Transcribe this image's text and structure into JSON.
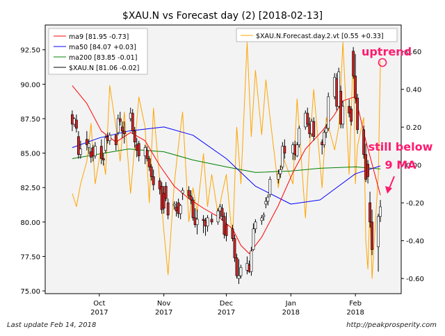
{
  "chart_data": {
    "type": "candlestick",
    "title": "$XAU.N vs Forecast day (2)  [2018-02-13]",
    "left_axis": {
      "ylim": [
        74.8,
        94.3
      ],
      "ticks": [
        "75.00",
        "77.50",
        "80.00",
        "82.50",
        "85.00",
        "87.50",
        "90.00",
        "92.50"
      ]
    },
    "right_axis": {
      "ylim": [
        -0.68,
        0.74
      ],
      "ticks": [
        "-0.60",
        "-0.40",
        "-0.20",
        "0.00",
        "0.20",
        "0.40",
        "0.60"
      ]
    },
    "x_axis": {
      "xlim": [
        "2017-09-05",
        "2018-02-23"
      ],
      "ticks": [
        {
          "date": "2017-10-01",
          "line1": "Oct",
          "line2": "2017"
        },
        {
          "date": "2017-11-01",
          "line1": "Nov",
          "line2": "2017"
        },
        {
          "date": "2017-12-01",
          "line1": "Dec",
          "line2": "2017"
        },
        {
          "date": "2018-01-01",
          "line1": "Jan",
          "line2": "2018"
        },
        {
          "date": "2018-02-01",
          "line1": "Feb",
          "line2": "2018"
        }
      ]
    },
    "legend_left": {
      "placement": "top-left",
      "entries": [
        {
          "label": "ma9 [81.95 -0.73]",
          "color": "#ff0000"
        },
        {
          "label": "ma50 [84.07 +0.03]",
          "color": "#0000ff"
        },
        {
          "label": "ma200 [83.85 -0.01]",
          "color": "#008000"
        },
        {
          "label": "$XAU.N [81.06 -0.02]",
          "color": "#000000"
        }
      ]
    },
    "legend_right": {
      "placement": "top-right",
      "entries": [
        {
          "label": "$XAU.N.Forecast.day.2.vt [0.55 +0.33]",
          "color": "#ffa500"
        }
      ]
    },
    "colors": {
      "up": "#ffffff",
      "down": "#cc2222",
      "ma9": "#ff0000",
      "ma50": "#0000ff",
      "ma200": "#008000",
      "forecast": "#ffa500",
      "annotation": "#ff1a6e",
      "plot_bg": "#f3f3f3"
    },
    "candles": [
      {
        "d": "2017-09-18",
        "o": 87.8,
        "h": 88.1,
        "l": 86.6,
        "c": 87.1
      },
      {
        "d": "2017-09-19",
        "o": 87.1,
        "h": 87.6,
        "l": 86.9,
        "c": 87.5
      },
      {
        "d": "2017-09-20",
        "o": 87.4,
        "h": 87.8,
        "l": 86.5,
        "c": 86.8
      },
      {
        "d": "2017-09-21",
        "o": 86.2,
        "h": 86.6,
        "l": 84.6,
        "c": 84.9
      },
      {
        "d": "2017-09-22",
        "o": 84.9,
        "h": 85.9,
        "l": 84.6,
        "c": 85.3
      },
      {
        "d": "2017-09-25",
        "o": 86.0,
        "h": 86.6,
        "l": 85.2,
        "c": 85.6
      },
      {
        "d": "2017-09-26",
        "o": 85.4,
        "h": 86.0,
        "l": 84.9,
        "c": 85.7
      },
      {
        "d": "2017-09-27",
        "o": 85.1,
        "h": 85.4,
        "l": 84.3,
        "c": 84.7
      },
      {
        "d": "2017-09-28",
        "o": 85.4,
        "h": 85.6,
        "l": 84.4,
        "c": 84.8
      },
      {
        "d": "2017-09-29",
        "o": 84.8,
        "h": 85.8,
        "l": 84.6,
        "c": 85.5
      },
      {
        "d": "2017-10-02",
        "o": 85.5,
        "h": 86.0,
        "l": 84.2,
        "c": 84.6
      },
      {
        "d": "2017-10-03",
        "o": 84.6,
        "h": 85.0,
        "l": 84.1,
        "c": 84.5
      },
      {
        "d": "2017-10-04",
        "o": 85.2,
        "h": 86.3,
        "l": 85.0,
        "c": 86.1
      },
      {
        "d": "2017-10-05",
        "o": 86.2,
        "h": 86.5,
        "l": 85.7,
        "c": 85.9
      },
      {
        "d": "2017-10-06",
        "o": 85.9,
        "h": 86.5,
        "l": 85.6,
        "c": 86.3
      },
      {
        "d": "2017-10-09",
        "o": 86.3,
        "h": 86.4,
        "l": 85.2,
        "c": 85.6
      },
      {
        "d": "2017-10-10",
        "o": 86.5,
        "h": 87.8,
        "l": 86.3,
        "c": 87.5
      },
      {
        "d": "2017-10-11",
        "o": 87.5,
        "h": 88.0,
        "l": 87.0,
        "c": 87.3
      },
      {
        "d": "2017-10-12",
        "o": 86.9,
        "h": 87.3,
        "l": 86.1,
        "c": 86.6
      },
      {
        "d": "2017-10-13",
        "o": 86.6,
        "h": 87.3,
        "l": 85.7,
        "c": 86.4
      },
      {
        "d": "2017-10-16",
        "o": 87.5,
        "h": 88.3,
        "l": 87.3,
        "c": 87.9
      },
      {
        "d": "2017-10-17",
        "o": 87.9,
        "h": 88.2,
        "l": 86.4,
        "c": 86.6
      },
      {
        "d": "2017-10-18",
        "o": 86.6,
        "h": 86.9,
        "l": 85.4,
        "c": 85.8
      },
      {
        "d": "2017-10-19",
        "o": 85.6,
        "h": 86.1,
        "l": 84.7,
        "c": 85.2
      },
      {
        "d": "2017-10-20",
        "o": 85.7,
        "h": 85.9,
        "l": 84.4,
        "c": 84.8
      },
      {
        "d": "2017-10-23",
        "o": 84.8,
        "h": 85.6,
        "l": 84.2,
        "c": 85.4
      },
      {
        "d": "2017-10-24",
        "o": 85.2,
        "h": 85.5,
        "l": 84.4,
        "c": 84.6
      },
      {
        "d": "2017-10-25",
        "o": 84.6,
        "h": 84.8,
        "l": 83.7,
        "c": 84.0
      },
      {
        "d": "2017-10-26",
        "o": 84.0,
        "h": 84.2,
        "l": 83.0,
        "c": 83.3
      },
      {
        "d": "2017-10-27",
        "o": 83.3,
        "h": 83.8,
        "l": 82.3,
        "c": 82.7
      },
      {
        "d": "2017-10-30",
        "o": 83.0,
        "h": 83.2,
        "l": 82.0,
        "c": 82.4
      },
      {
        "d": "2017-10-31",
        "o": 82.6,
        "h": 82.9,
        "l": 80.6,
        "c": 80.9
      },
      {
        "d": "2017-11-01",
        "o": 82.1,
        "h": 82.6,
        "l": 80.6,
        "c": 81.0
      },
      {
        "d": "2017-11-02",
        "o": 82.6,
        "h": 82.9,
        "l": 81.5,
        "c": 81.7
      },
      {
        "d": "2017-11-03",
        "o": 81.4,
        "h": 81.7,
        "l": 80.2,
        "c": 80.5
      },
      {
        "d": "2017-11-06",
        "o": 81.2,
        "h": 81.5,
        "l": 80.9,
        "c": 81.3
      },
      {
        "d": "2017-11-07",
        "o": 81.1,
        "h": 81.5,
        "l": 80.4,
        "c": 80.8
      },
      {
        "d": "2017-11-08",
        "o": 81.4,
        "h": 81.7,
        "l": 80.3,
        "c": 80.6
      },
      {
        "d": "2017-11-09",
        "o": 80.6,
        "h": 81.3,
        "l": 80.2,
        "c": 81.2
      },
      {
        "d": "2017-11-10",
        "o": 82.1,
        "h": 82.5,
        "l": 81.6,
        "c": 82.3
      },
      {
        "d": "2017-11-13",
        "o": 82.3,
        "h": 82.6,
        "l": 81.7,
        "c": 81.9
      },
      {
        "d": "2017-11-14",
        "o": 81.9,
        "h": 82.3,
        "l": 81.3,
        "c": 81.6
      },
      {
        "d": "2017-11-15",
        "o": 81.6,
        "h": 81.8,
        "l": 80.1,
        "c": 80.3
      },
      {
        "d": "2017-11-16",
        "o": 80.3,
        "h": 81.0,
        "l": 79.6,
        "c": 79.8
      },
      {
        "d": "2017-11-17",
        "o": 79.8,
        "h": 80.9,
        "l": 79.1,
        "c": 80.2
      },
      {
        "d": "2017-11-20",
        "o": 80.2,
        "h": 80.5,
        "l": 79.2,
        "c": 80.1
      },
      {
        "d": "2017-11-21",
        "o": 80.1,
        "h": 80.3,
        "l": 79.0,
        "c": 79.7
      },
      {
        "d": "2017-11-22",
        "o": 79.7,
        "h": 80.5,
        "l": 79.3,
        "c": 80.3
      },
      {
        "d": "2017-11-24",
        "o": 80.2,
        "h": 80.6,
        "l": 79.8,
        "c": 80.0
      },
      {
        "d": "2017-11-27",
        "o": 80.0,
        "h": 81.0,
        "l": 79.8,
        "c": 80.8
      },
      {
        "d": "2017-11-28",
        "o": 80.8,
        "h": 81.3,
        "l": 80.3,
        "c": 81.1
      },
      {
        "d": "2017-11-29",
        "o": 81.0,
        "h": 81.3,
        "l": 80.1,
        "c": 80.4
      },
      {
        "d": "2017-11-30",
        "o": 80.4,
        "h": 80.7,
        "l": 78.8,
        "c": 79.1
      },
      {
        "d": "2017-12-01",
        "o": 79.8,
        "h": 80.7,
        "l": 78.6,
        "c": 79.0
      },
      {
        "d": "2017-12-04",
        "o": 79.5,
        "h": 79.8,
        "l": 78.6,
        "c": 78.8
      },
      {
        "d": "2017-12-05",
        "o": 78.8,
        "h": 79.1,
        "l": 77.1,
        "c": 77.4
      },
      {
        "d": "2017-12-06",
        "o": 77.4,
        "h": 77.7,
        "l": 75.9,
        "c": 76.1
      },
      {
        "d": "2017-12-07",
        "o": 75.9,
        "h": 77.3,
        "l": 75.5,
        "c": 76.1
      },
      {
        "d": "2017-12-08",
        "o": 76.1,
        "h": 76.9,
        "l": 75.9,
        "c": 76.7
      },
      {
        "d": "2017-12-11",
        "o": 76.5,
        "h": 77.5,
        "l": 76.2,
        "c": 77.0
      },
      {
        "d": "2017-12-12",
        "o": 76.9,
        "h": 77.2,
        "l": 76.3,
        "c": 76.4
      },
      {
        "d": "2017-12-13",
        "o": 76.4,
        "h": 78.2,
        "l": 76.1,
        "c": 77.9
      },
      {
        "d": "2017-12-14",
        "o": 78.0,
        "h": 79.9,
        "l": 77.9,
        "c": 79.5
      },
      {
        "d": "2017-12-15",
        "o": 79.5,
        "h": 80.2,
        "l": 79.2,
        "c": 80.0
      },
      {
        "d": "2017-12-18",
        "o": 80.1,
        "h": 80.5,
        "l": 79.8,
        "c": 80.3
      },
      {
        "d": "2017-12-19",
        "o": 80.4,
        "h": 80.7,
        "l": 80.1,
        "c": 80.5
      },
      {
        "d": "2017-12-20",
        "o": 81.3,
        "h": 81.8,
        "l": 81.0,
        "c": 81.5
      },
      {
        "d": "2017-12-21",
        "o": 81.5,
        "h": 82.0,
        "l": 81.2,
        "c": 81.8
      },
      {
        "d": "2017-12-22",
        "o": 82.0,
        "h": 83.3,
        "l": 81.8,
        "c": 83.1
      },
      {
        "d": "2017-12-26",
        "o": 83.1,
        "h": 83.8,
        "l": 82.8,
        "c": 83.5
      },
      {
        "d": "2017-12-27",
        "o": 83.5,
        "h": 84.1,
        "l": 83.2,
        "c": 83.8
      },
      {
        "d": "2017-12-28",
        "o": 84.0,
        "h": 85.8,
        "l": 83.8,
        "c": 85.5
      },
      {
        "d": "2017-12-29",
        "o": 85.5,
        "h": 86.0,
        "l": 84.6,
        "c": 85.0
      },
      {
        "d": "2018-01-02",
        "o": 85.0,
        "h": 85.8,
        "l": 84.5,
        "c": 85.6
      },
      {
        "d": "2018-01-03",
        "o": 85.6,
        "h": 85.9,
        "l": 84.5,
        "c": 84.9
      },
      {
        "d": "2018-01-04",
        "o": 84.8,
        "h": 85.8,
        "l": 84.7,
        "c": 85.6
      },
      {
        "d": "2018-01-05",
        "o": 85.6,
        "h": 87.0,
        "l": 85.4,
        "c": 86.8
      },
      {
        "d": "2018-01-08",
        "o": 86.9,
        "h": 88.1,
        "l": 86.7,
        "c": 87.9
      },
      {
        "d": "2018-01-09",
        "o": 87.9,
        "h": 88.3,
        "l": 86.9,
        "c": 87.1
      },
      {
        "d": "2018-01-10",
        "o": 87.1,
        "h": 87.6,
        "l": 86.1,
        "c": 86.4
      },
      {
        "d": "2018-01-11",
        "o": 86.4,
        "h": 87.5,
        "l": 86.2,
        "c": 87.3
      },
      {
        "d": "2018-01-12",
        "o": 87.3,
        "h": 87.6,
        "l": 85.9,
        "c": 86.2
      },
      {
        "d": "2018-01-16",
        "o": 85.8,
        "h": 86.0,
        "l": 84.9,
        "c": 85.6
      },
      {
        "d": "2018-01-17",
        "o": 85.6,
        "h": 86.7,
        "l": 85.4,
        "c": 86.5
      },
      {
        "d": "2018-01-18",
        "o": 86.5,
        "h": 87.1,
        "l": 86.1,
        "c": 86.8
      },
      {
        "d": "2018-01-19",
        "o": 86.8,
        "h": 89.4,
        "l": 86.6,
        "c": 89.1
      },
      {
        "d": "2018-01-22",
        "o": 89.1,
        "h": 90.8,
        "l": 88.9,
        "c": 90.5
      },
      {
        "d": "2018-01-23",
        "o": 90.4,
        "h": 90.8,
        "l": 88.1,
        "c": 88.4
      },
      {
        "d": "2018-01-24",
        "o": 88.4,
        "h": 91.2,
        "l": 88.3,
        "c": 90.9
      },
      {
        "d": "2018-01-25",
        "o": 89.5,
        "h": 89.9,
        "l": 86.8,
        "c": 87.1
      },
      {
        "d": "2018-01-26",
        "o": 87.1,
        "h": 88.8,
        "l": 86.8,
        "c": 88.4
      },
      {
        "d": "2018-01-29",
        "o": 88.4,
        "h": 88.9,
        "l": 87.6,
        "c": 87.9
      },
      {
        "d": "2018-01-30",
        "o": 88.2,
        "h": 88.4,
        "l": 87.0,
        "c": 87.3
      },
      {
        "d": "2018-01-31",
        "o": 92.4,
        "h": 92.7,
        "l": 90.4,
        "c": 90.6
      },
      {
        "d": "2018-02-01",
        "o": 90.6,
        "h": 92.2,
        "l": 88.6,
        "c": 89.0
      },
      {
        "d": "2018-02-02",
        "o": 89.0,
        "h": 89.3,
        "l": 86.4,
        "c": 86.7
      },
      {
        "d": "2018-02-05",
        "o": 86.7,
        "h": 87.0,
        "l": 84.6,
        "c": 84.9
      },
      {
        "d": "2018-02-06",
        "o": 84.9,
        "h": 85.7,
        "l": 82.9,
        "c": 83.1
      },
      {
        "d": "2018-02-07",
        "o": 84.2,
        "h": 84.5,
        "l": 82.8,
        "c": 83.3
      },
      {
        "d": "2018-02-08",
        "o": 81.4,
        "h": 82.2,
        "l": 79.6,
        "c": 80.0
      },
      {
        "d": "2018-02-09",
        "o": 80.0,
        "h": 80.9,
        "l": 77.6,
        "c": 78.0
      },
      {
        "d": "2018-02-12",
        "o": 78.2,
        "h": 80.6,
        "l": 76.4,
        "c": 80.4
      },
      {
        "d": "2018-02-13",
        "o": 80.4,
        "h": 81.6,
        "l": 80.0,
        "c": 81.1
      }
    ],
    "ma9": {
      "dates": [
        "2017-09-18",
        "2017-09-25",
        "2017-10-02",
        "2017-10-09",
        "2017-10-16",
        "2017-10-23",
        "2017-10-30",
        "2017-11-06",
        "2017-11-13",
        "2017-11-20",
        "2017-11-27",
        "2017-12-04",
        "2017-12-08",
        "2017-12-12",
        "2017-12-18",
        "2017-12-26",
        "2018-01-02",
        "2018-01-08",
        "2018-01-16",
        "2018-01-22",
        "2018-01-26",
        "2018-02-01",
        "2018-02-06",
        "2018-02-13"
      ],
      "values": [
        89.9,
        88.6,
        86.6,
        85.8,
        86.5,
        85.9,
        84.1,
        82.6,
        81.7,
        81.0,
        80.4,
        79.5,
        78.3,
        77.7,
        78.9,
        81.2,
        83.6,
        85.3,
        86.6,
        87.8,
        88.8,
        89.1,
        85.9,
        81.95
      ]
    },
    "ma50": {
      "dates": [
        "2017-09-18",
        "2017-10-01",
        "2017-10-15",
        "2017-11-01",
        "2017-11-15",
        "2017-12-01",
        "2017-12-15",
        "2018-01-01",
        "2018-01-15",
        "2018-02-01",
        "2018-02-13"
      ],
      "values": [
        85.4,
        86.1,
        86.6,
        86.9,
        86.3,
        84.6,
        82.6,
        81.3,
        81.6,
        83.5,
        84.07
      ]
    },
    "ma200": {
      "dates": [
        "2017-09-18",
        "2017-10-15",
        "2017-11-01",
        "2017-11-15",
        "2017-12-01",
        "2017-12-15",
        "2018-01-01",
        "2018-01-15",
        "2018-02-01",
        "2018-02-13"
      ],
      "values": [
        84.6,
        85.3,
        85.1,
        84.5,
        84.0,
        83.6,
        83.7,
        83.9,
        84.0,
        83.85
      ]
    },
    "forecast": {
      "dates": [
        "2017-09-18",
        "2017-09-20",
        "2017-09-22",
        "2017-09-25",
        "2017-09-27",
        "2017-09-29",
        "2017-10-02",
        "2017-10-04",
        "2017-10-06",
        "2017-10-09",
        "2017-10-11",
        "2017-10-13",
        "2017-10-16",
        "2017-10-18",
        "2017-10-20",
        "2017-10-23",
        "2017-10-25",
        "2017-10-27",
        "2017-10-30",
        "2017-11-01",
        "2017-11-03",
        "2017-11-06",
        "2017-11-08",
        "2017-11-10",
        "2017-11-13",
        "2017-11-15",
        "2017-11-17",
        "2017-11-20",
        "2017-11-22",
        "2017-11-24",
        "2017-11-27",
        "2017-11-29",
        "2017-12-01",
        "2017-12-04",
        "2017-12-06",
        "2017-12-08",
        "2017-12-11",
        "2017-12-13",
        "2017-12-15",
        "2017-12-18",
        "2017-12-20",
        "2017-12-22",
        "2017-12-26",
        "2017-12-28",
        "2018-01-02",
        "2018-01-04",
        "2018-01-08",
        "2018-01-10",
        "2018-01-12",
        "2018-01-16",
        "2018-01-18",
        "2018-01-22",
        "2018-01-24",
        "2018-01-26",
        "2018-01-29",
        "2018-01-31",
        "2018-02-01",
        "2018-02-02",
        "2018-02-05",
        "2018-02-06",
        "2018-02-07",
        "2018-02-08",
        "2018-02-09",
        "2018-02-12",
        "2018-02-13"
      ],
      "values": [
        -0.15,
        -0.22,
        -0.1,
        0.02,
        0.22,
        -0.1,
        0.1,
        -0.05,
        0.42,
        0.2,
        0.02,
        0.28,
        -0.15,
        0.1,
        0.36,
        0.2,
        -0.2,
        0.3,
        -0.08,
        -0.35,
        -0.58,
        -0.1,
        0.1,
        0.28,
        -0.3,
        -0.12,
        -0.25,
        0.06,
        -0.22,
        -0.05,
        -0.26,
        -0.15,
        -0.05,
        -0.4,
        0.2,
        -0.1,
        0.65,
        0.15,
        0.5,
        0.16,
        0.45,
        0.25,
        -0.12,
        0.05,
        -0.1,
        0.35,
        -0.28,
        0.1,
        0.4,
        -0.12,
        0.25,
        0.08,
        0.2,
        0.65,
        -0.05,
        0.6,
        -0.1,
        0.1,
        0.25,
        -0.4,
        -0.55,
        -0.22,
        -0.6,
        -0.05,
        0.55
      ]
    },
    "annotations": [
      {
        "text": "uptrend",
        "color": "#ff1a6e"
      },
      {
        "text_line1": "still below",
        "text_line2": "9 MA",
        "color": "#ff1a6e"
      }
    ]
  },
  "footer": {
    "left": "Last update Feb 14, 2018",
    "right": "http://peakprosperity.com"
  }
}
